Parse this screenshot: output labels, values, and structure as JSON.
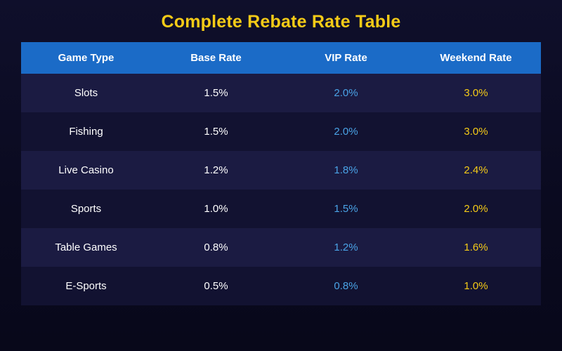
{
  "title": "Complete Rebate Rate Table",
  "colors": {
    "title": "#f5cb17",
    "header_bg": "#1b6bc7",
    "vip_text": "#4aa3e6",
    "weekend_text": "#f5cb17",
    "row_odd": "#1b1b42",
    "row_even": "#121231"
  },
  "table": {
    "headers": [
      "Game Type",
      "Base Rate",
      "VIP Rate",
      "Weekend Rate"
    ],
    "rows": [
      {
        "game_type": "Slots",
        "base_rate": "1.5%",
        "vip_rate": "2.0%",
        "weekend_rate": "3.0%"
      },
      {
        "game_type": "Fishing",
        "base_rate": "1.5%",
        "vip_rate": "2.0%",
        "weekend_rate": "3.0%"
      },
      {
        "game_type": "Live Casino",
        "base_rate": "1.2%",
        "vip_rate": "1.8%",
        "weekend_rate": "2.4%"
      },
      {
        "game_type": "Sports",
        "base_rate": "1.0%",
        "vip_rate": "1.5%",
        "weekend_rate": "2.0%"
      },
      {
        "game_type": "Table Games",
        "base_rate": "0.8%",
        "vip_rate": "1.2%",
        "weekend_rate": "1.6%"
      },
      {
        "game_type": "E-Sports",
        "base_rate": "0.5%",
        "vip_rate": "0.8%",
        "weekend_rate": "1.0%"
      }
    ]
  }
}
